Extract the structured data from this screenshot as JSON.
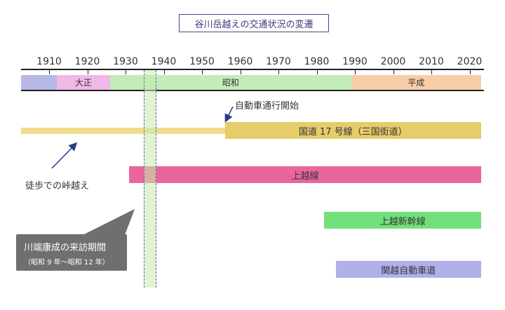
{
  "title": "谷川岳越えの交通状況の変遷",
  "chart_data": {
    "type": "timeline",
    "x_range": [
      1900,
      2023
    ],
    "ticks": [
      1910,
      1920,
      1930,
      1940,
      1950,
      1960,
      1970,
      1980,
      1990,
      2000,
      2010,
      2020
    ],
    "tick_labels": [
      "1910",
      "1920",
      "1930",
      "1940",
      "1950",
      "1960",
      "1970",
      "1980",
      "1990",
      "2000",
      "2010",
      "2020"
    ],
    "eras": [
      {
        "label": "",
        "start": 1900,
        "end": 1912,
        "color": "#b7b7e6"
      },
      {
        "label": "大正",
        "start": 1912,
        "end": 1926,
        "color": "#f0b8e6"
      },
      {
        "label": "昭和",
        "start": 1926,
        "end": 1989,
        "color": "#c2ecb8"
      },
      {
        "label": "平成",
        "start": 1989,
        "end": 2023,
        "color": "#f9cda8"
      }
    ],
    "routes": [
      {
        "label": "国道 17 号線（三国街道）",
        "start": 1956,
        "end": 2023,
        "color": "#e6cc6a"
      },
      {
        "label": "上越線",
        "start": 1931,
        "end": 2023,
        "color": "#e9669c"
      },
      {
        "label": "上越新幹線",
        "start": 1982,
        "end": 2023,
        "color": "#72e07a"
      },
      {
        "label": "関越自動車道",
        "start": 1985,
        "end": 2023,
        "color": "#b0b0ea"
      }
    ],
    "foot_path": {
      "start": 1900,
      "end": 1956,
      "color": "#eedc8c"
    },
    "visit_period": {
      "start": 1934,
      "end": 1937
    }
  },
  "annotations": {
    "car_traffic": "自動車通行開始",
    "walking": "徒歩での峠越え",
    "visit_title": "川端康成の来訪期間",
    "visit_sub": "（昭和 9 年〜昭和 12 年）"
  }
}
